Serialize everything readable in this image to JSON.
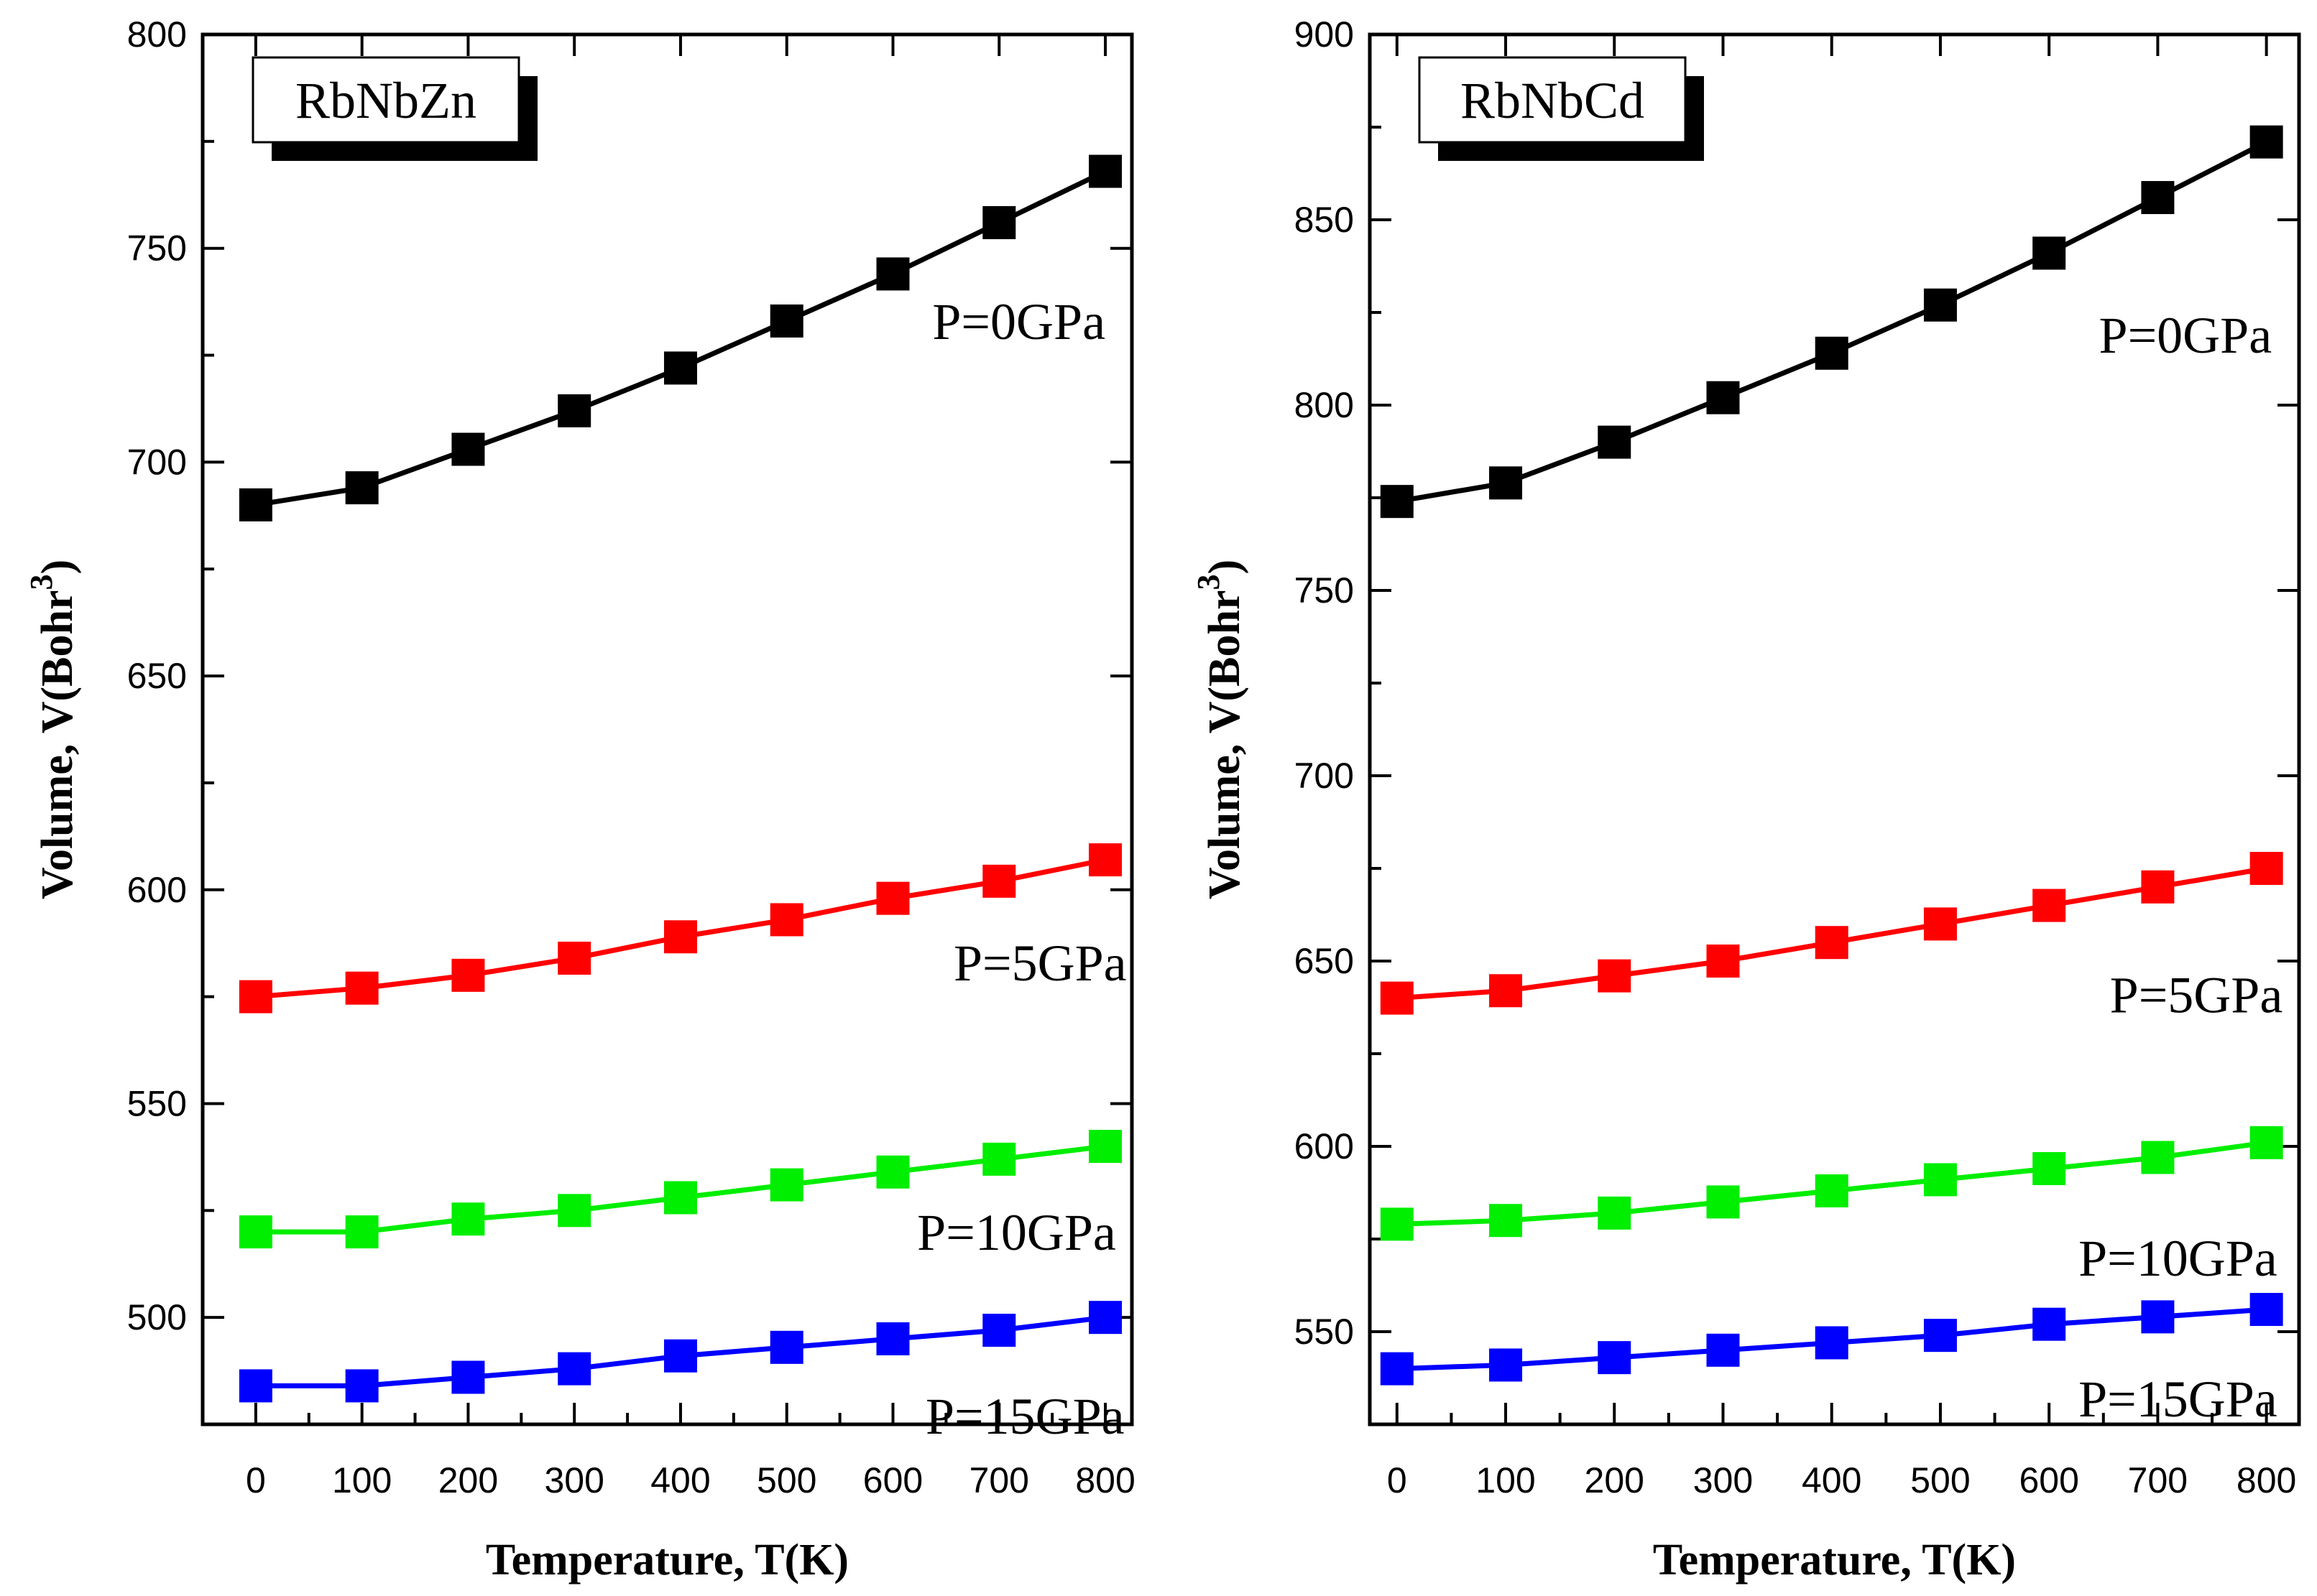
{
  "chart_data": [
    {
      "type": "line",
      "title": "RbNbZn",
      "xlabel": "Temperature, T(K)",
      "ylabel": "Volume,  V(Bohr³)",
      "ylabel_main": "Volume,  V(Bohr",
      "ylabel_sup": "3",
      "ylabel_close": ")",
      "xlim": [
        -50,
        825
      ],
      "ylim": [
        475,
        800
      ],
      "xticks": [
        0,
        100,
        200,
        300,
        400,
        500,
        600,
        700,
        800
      ],
      "xtick_labels": [
        "0",
        "100",
        "200",
        "300",
        "400",
        "500",
        "600",
        "700",
        "800"
      ],
      "yticks": [
        500,
        550,
        600,
        650,
        700,
        750,
        800
      ],
      "ytick_labels": [
        "500",
        "550",
        "600",
        "650",
        "700",
        "750",
        "800"
      ],
      "x": [
        0,
        100,
        200,
        300,
        400,
        500,
        600,
        700,
        800
      ],
      "series": [
        {
          "name": "P=0GPa",
          "color": "#000000",
          "values": [
            690,
            694,
            703,
            712,
            722,
            733,
            744,
            756,
            768
          ],
          "label_anchor": [
            800,
            733
          ]
        },
        {
          "name": "P=5GPa",
          "color": "#ff0000",
          "values": [
            575,
            577,
            580,
            584,
            589,
            593,
            598,
            602,
            607
          ],
          "label_anchor": [
            820,
            583
          ]
        },
        {
          "name": "P=10GPa",
          "color": "#00ee00",
          "values": [
            520,
            520,
            523,
            525,
            528,
            531,
            534,
            537,
            540
          ],
          "label_anchor": [
            810,
            520
          ]
        },
        {
          "name": "P=15GPa",
          "color": "#0000ff",
          "values": [
            484,
            484,
            486,
            488,
            491,
            493,
            495,
            497,
            500
          ],
          "label_anchor": [
            818,
            477
          ]
        }
      ]
    },
    {
      "type": "line",
      "title": "RbNbCd",
      "xlabel": "Temperature, T(K)",
      "ylabel": "Volume,  V(Bohr³)",
      "ylabel_main": "Volume,  V(Bohr",
      "ylabel_sup": "3",
      "ylabel_close": ")",
      "xlim": [
        -25,
        830
      ],
      "ylim": [
        525,
        900
      ],
      "xticks": [
        0,
        100,
        200,
        300,
        400,
        500,
        600,
        700,
        800
      ],
      "xtick_labels": [
        "0",
        "100",
        "200",
        "300",
        "400",
        "500",
        "600",
        "700",
        "800"
      ],
      "yticks": [
        550,
        600,
        650,
        700,
        750,
        800,
        850,
        900
      ],
      "ytick_labels": [
        "550",
        "600",
        "650",
        "700",
        "750",
        "800",
        "850",
        "900"
      ],
      "x": [
        0,
        100,
        200,
        300,
        400,
        500,
        600,
        700,
        800
      ],
      "series": [
        {
          "name": "P=0GPa",
          "color": "#000000",
          "values": [
            774,
            779,
            790,
            802,
            814,
            827,
            841,
            856,
            871
          ],
          "label_anchor": [
            805,
            819
          ]
        },
        {
          "name": "P=5GPa",
          "color": "#ff0000",
          "values": [
            640,
            642,
            646,
            650,
            655,
            660,
            665,
            670,
            675
          ],
          "label_anchor": [
            815,
            641
          ]
        },
        {
          "name": "P=10GPa",
          "color": "#00ee00",
          "values": [
            579,
            580,
            582,
            585,
            588,
            591,
            594,
            597,
            601
          ],
          "label_anchor": [
            810,
            570
          ]
        },
        {
          "name": "P=15GPa",
          "color": "#0000ff",
          "values": [
            540,
            541,
            543,
            545,
            547,
            549,
            552,
            554,
            556
          ],
          "label_anchor": [
            810,
            532
          ]
        }
      ]
    }
  ]
}
